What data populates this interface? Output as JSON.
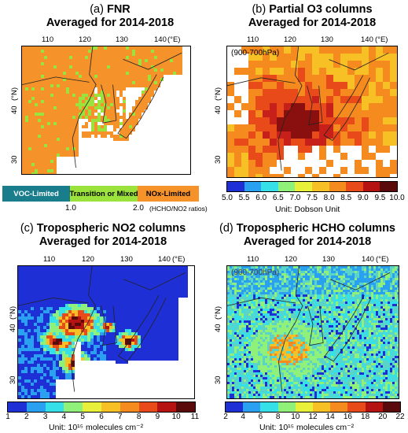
{
  "panels": {
    "a": {
      "letter": "(a)",
      "title_line1": "FNR",
      "title_line2": "Averaged for 2014-2018"
    },
    "b": {
      "letter": "(b)",
      "title_line1": "Partial O3 columns",
      "title_line2": "Averaged for 2014-2018",
      "inset": "(900-700hPa)"
    },
    "c": {
      "letter": "(c)",
      "title_line1": "Tropospheric NO2 columns",
      "title_line2": "Averaged for 2014-2018"
    },
    "d": {
      "letter": "(d)",
      "title_line1": "Tropospheric HCHO columns",
      "title_line2": "Averaged for 2014-2018",
      "inset": "(900-700hPa)"
    }
  },
  "axes": {
    "lon_ticks": [
      "110",
      "120",
      "130",
      "140"
    ],
    "lon_unit": "(°E)",
    "lat_ticks": [
      "40",
      "30"
    ],
    "lat_unit": "(°N)"
  },
  "fnr_legend": {
    "segments": [
      {
        "label": "VOC-Limited",
        "color": "#1a7d8c"
      },
      {
        "label": "Transition or Mixed",
        "color": "#9be23c"
      },
      {
        "label": "NOx-Limited",
        "color": "#f5932a"
      }
    ],
    "ticks": [
      "1.0",
      "2.0"
    ],
    "unit": "(HCHO/NO2 ratios)"
  },
  "o3_colorbar": {
    "ticks": [
      "5.0",
      "5.5",
      "6.0",
      "6.5",
      "7.0",
      "7.5",
      "8.0",
      "8.5",
      "9.0",
      "9.5",
      "10.0"
    ],
    "colors": [
      "#1f2fd6",
      "#2aa0f0",
      "#36e0e8",
      "#8ff07a",
      "#e8f03a",
      "#f7c025",
      "#f58a1e",
      "#e84a1a",
      "#b51212",
      "#5a0a0a"
    ],
    "unit": "Unit: Dobson Unit"
  },
  "no2_colorbar": {
    "ticks": [
      "1",
      "2",
      "3",
      "4",
      "5",
      "6",
      "7",
      "8",
      "9",
      "10",
      "11"
    ],
    "colors": [
      "#1f2fd6",
      "#2aa0f0",
      "#36e0e8",
      "#8ff07a",
      "#e8f03a",
      "#f7c025",
      "#f58a1e",
      "#e84a1a",
      "#b51212",
      "#5a0a0a"
    ],
    "unit": "Unit: 10¹⁵ molecules cm⁻²"
  },
  "hcho_colorbar": {
    "ticks": [
      "2",
      "4",
      "6",
      "8",
      "10",
      "12",
      "14",
      "16",
      "18",
      "20",
      "22"
    ],
    "colors": [
      "#1f2fd6",
      "#2aa0f0",
      "#36e0e8",
      "#8ff07a",
      "#e8f03a",
      "#f7c025",
      "#f58a1e",
      "#e84a1a",
      "#b51212",
      "#5a0a0a"
    ],
    "unit": "Unit: 10¹⁵ molecules cm⁻²"
  }
}
